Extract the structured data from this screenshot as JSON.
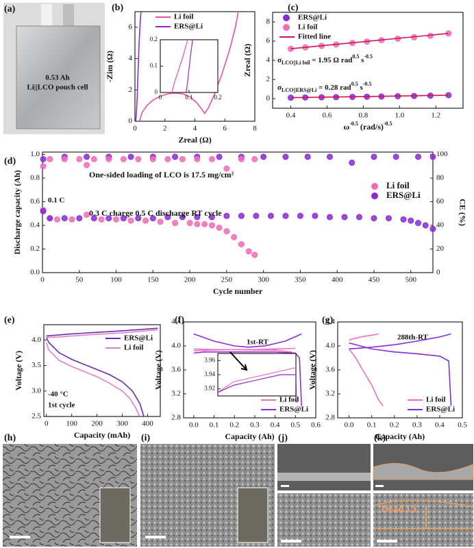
{
  "panel_labels": [
    "(a)",
    "(b)",
    "(c)",
    "(d)",
    "(e)",
    "(f)",
    "(g)",
    "(h)",
    "(i)",
    "(j)",
    "(k)"
  ],
  "photo_a": {
    "lines": [
      "0.53 Ah",
      "Li||LCO pouch cell"
    ]
  },
  "sem_k": "Dead Li",
  "chart_data": [
    {
      "type": "line",
      "x_label": "Zreal (Ω)",
      "y_label": "-Zim (Ω)",
      "xlim": [
        0,
        8
      ],
      "ylim": [
        0,
        7
      ],
      "xticks": [
        0,
        2,
        4,
        6,
        8
      ],
      "yticks": [
        0,
        2,
        4,
        6
      ],
      "legend": "top",
      "series": [
        {
          "name": "Li foil",
          "color": "#ee4f9c",
          "x": [
            0.3,
            0.5,
            0.8,
            1.2,
            1.7,
            2.2,
            2.7,
            3.2,
            3.7,
            4.1,
            4.4,
            4.65,
            4.9,
            5.3,
            5.8,
            6.3,
            6.7,
            6.9
          ],
          "values": [
            0,
            0.6,
            1.0,
            1.35,
            1.6,
            1.75,
            1.8,
            1.75,
            1.55,
            1.2,
            0.85,
            0.5,
            0.85,
            1.7,
            3.0,
            4.5,
            6.0,
            7.0
          ]
        },
        {
          "name": "ERS@Li",
          "color": "#8a2bd6",
          "x": [
            0.05,
            0.08,
            0.1,
            0.15,
            0.2,
            0.28,
            0.35,
            0.4
          ],
          "values": [
            0,
            0.3,
            0.6,
            1.5,
            3.0,
            5.0,
            6.3,
            7.0
          ]
        }
      ]
    },
    {
      "type": "line",
      "xlim": [
        0,
        0.2
      ],
      "ylim": [
        0,
        0.2
      ],
      "xticks": [
        0,
        0.1,
        0.2
      ],
      "yticks": [
        0,
        0.1,
        0.2
      ],
      "series": [
        {
          "color": "#ee4f9c",
          "x": [
            0.04,
            0.05,
            0.065,
            0.08,
            0.09,
            0.095
          ],
          "values": [
            0,
            0.04,
            0.09,
            0.14,
            0.18,
            0.2
          ]
        },
        {
          "color": "#8a2bd6",
          "x": [
            0.09,
            0.095,
            0.1,
            0.105,
            0.11,
            0.112
          ],
          "values": [
            0,
            0.04,
            0.09,
            0.14,
            0.18,
            0.2
          ]
        }
      ]
    },
    {
      "type": "scatter",
      "x_label": [
        {
          "text": "ω"
        },
        {
          "text": "-0.5",
          "shift": "super"
        },
        {
          "text": " (rad/s)"
        },
        {
          "text": "-0.5",
          "shift": "super"
        }
      ],
      "y_label": "Zreal (Ω)",
      "xlim": [
        0.3,
        1.35
      ],
      "ylim": [
        -1,
        9
      ],
      "xticks": [
        0.4,
        0.6,
        0.8,
        {
          "value": 1,
          "label": "1.0"
        },
        1.2
      ],
      "yticks": [
        0,
        2,
        4,
        6,
        8
      ],
      "legend": "upper-left",
      "series": [
        {
          "name": "ERS@Li",
          "color": "#8a2bd6",
          "x": [
            0.4,
            0.48,
            0.57,
            0.65,
            0.74,
            0.82,
            0.9,
            0.99,
            1.08,
            1.17,
            1.27
          ],
          "values": [
            0.1,
            0.12,
            0.14,
            0.16,
            0.18,
            0.2,
            0.22,
            0.25,
            0.28,
            0.31,
            0.36
          ]
        },
        {
          "name": "Li foil",
          "color": "#f26bb8",
          "x": [
            0.4,
            0.48,
            0.57,
            0.65,
            0.74,
            0.82,
            0.9,
            0.99,
            1.08,
            1.17,
            1.27
          ],
          "values": [
            5.2,
            5.35,
            5.5,
            5.65,
            5.8,
            5.95,
            6.1,
            6.25,
            6.4,
            6.55,
            6.8
          ]
        },
        {
          "name": "Fitted line",
          "type": "line",
          "color": "#d3124f",
          "x": [
            0.4,
            1.27
          ],
          "values": [
            5.2,
            6.8
          ]
        },
        {
          "type": "line",
          "color": "#d3124f",
          "x": [
            0.4,
            1.27
          ],
          "values": [
            0.1,
            0.36
          ]
        }
      ],
      "annotations": [
        [
          {
            "text": "σ"
          },
          {
            "text": "LCO||Li foil",
            "shift": "sub"
          },
          {
            "text": " = 1.95 Ω rad"
          },
          {
            "text": "0.5",
            "shift": "super"
          },
          {
            "text": " s"
          },
          {
            "text": "-0.5",
            "shift": "super"
          }
        ],
        [
          {
            "text": "σ"
          },
          {
            "text": "LCO||ERS@Li",
            "shift": "sub"
          },
          {
            "text": " = 0.28 rad"
          },
          {
            "text": "0.5",
            "shift": "super"
          },
          {
            "text": " s"
          },
          {
            "text": "-0.5",
            "shift": "super"
          }
        ]
      ]
    },
    {
      "type": "scatter",
      "x_label": "Cycle number",
      "y_label": "Discharge capacity (Ah)",
      "y2_label": "CE (%)",
      "xlim": [
        0,
        530
      ],
      "ylim": [
        0,
        1.02
      ],
      "y2lim": [
        0,
        102
      ],
      "xticks": [
        0,
        50,
        100,
        150,
        200,
        250,
        300,
        350,
        400,
        450,
        500
      ],
      "yticks": [
        {
          "value": 0,
          "label": "0.0"
        },
        0.2,
        0.4,
        0.6,
        0.8,
        {
          "value": 1,
          "label": "1.0"
        }
      ],
      "y2ticks": [
        0,
        20,
        40,
        60,
        80,
        100
      ],
      "legend": "right",
      "series": [
        {
          "color": "#8a2bd6",
          "axis": "y2",
          "x": [
            1,
            30,
            60,
            90,
            120,
            150,
            180,
            210,
            240,
            270,
            300,
            330,
            360,
            390,
            420,
            450,
            480,
            510,
            530
          ],
          "values": [
            96,
            98,
            98,
            98,
            98,
            98,
            98,
            98,
            98,
            98,
            98,
            98,
            98,
            98,
            93,
            98,
            98,
            98,
            98
          ]
        },
        {
          "color": "#f26bb8",
          "axis": "y2",
          "x": [
            1,
            10,
            30,
            50,
            60,
            70,
            90,
            110,
            130,
            150,
            170,
            190,
            210,
            230,
            250,
            270,
            288
          ],
          "values": [
            90,
            96,
            96,
            96,
            91,
            96,
            96,
            96,
            96,
            96,
            96,
            96,
            96,
            96,
            88,
            96,
            96
          ]
        },
        {
          "name": "Li foil",
          "color": "#f26bb8",
          "x": [
            1,
            10,
            20,
            40,
            60,
            80,
            100,
            120,
            140,
            160,
            180,
            200,
            210,
            220,
            230,
            240,
            250,
            260,
            270,
            280,
            288
          ],
          "values": [
            0.53,
            0.46,
            0.45,
            0.45,
            0.49,
            0.45,
            0.45,
            0.44,
            0.44,
            0.43,
            0.42,
            0.42,
            0.41,
            0.41,
            0.4,
            0.38,
            0.35,
            0.3,
            0.24,
            0.18,
            0.15
          ]
        },
        {
          "name": "ERS@Li",
          "color": "#8a2bd6",
          "x": [
            1,
            10,
            30,
            50,
            70,
            90,
            110,
            130,
            150,
            170,
            190,
            210,
            230,
            250,
            270,
            290,
            310,
            330,
            350,
            370,
            390,
            410,
            430,
            450,
            470,
            490,
            500,
            510,
            520,
            530
          ],
          "values": [
            0.52,
            0.46,
            0.46,
            0.46,
            0.46,
            0.46,
            0.46,
            0.46,
            0.46,
            0.47,
            0.47,
            0.47,
            0.47,
            0.48,
            0.48,
            0.48,
            0.48,
            0.48,
            0.48,
            0.48,
            0.47,
            0.47,
            0.47,
            0.46,
            0.46,
            0.45,
            0.44,
            0.42,
            0.4,
            0.37
          ]
        }
      ],
      "annotations": [
        "One-sided loading of LCO is 17.5 mg/cm²",
        "0.1 C",
        "0.3 C charge 0.5 C discharge RT cycle"
      ]
    },
    {
      "type": "line",
      "x_label": "Capacity (mAh)",
      "y_label": "Voltage (V)",
      "xlim": [
        -10,
        450
      ],
      "ylim": [
        2.5,
        4.3
      ],
      "xticks": [
        0,
        100,
        200,
        300,
        400
      ],
      "yticks": [
        2.5,
        {
          "value": 3,
          "label": "3.0"
        },
        3.5,
        {
          "value": 4,
          "label": "4.0"
        }
      ],
      "legend": "upper-right",
      "series": [
        {
          "name": "ERS@Li",
          "color": "#6a2bb0",
          "x": [
            0,
            50,
            100,
            200,
            300,
            440,
            null,
            0,
            10,
            50,
            100,
            150,
            200,
            250,
            300,
            340,
            370,
            385
          ],
          "values": [
            4.08,
            4.1,
            4.12,
            4.15,
            4.18,
            4.23,
            null,
            4.05,
            3.95,
            3.75,
            3.62,
            3.52,
            3.42,
            3.32,
            3.18,
            3.0,
            2.75,
            2.5
          ]
        },
        {
          "name": "Li foil",
          "color": "#e87dd0",
          "x": [
            0,
            50,
            100,
            200,
            300,
            440,
            null,
            0,
            10,
            50,
            100,
            150,
            200,
            250,
            300,
            330,
            355,
            368
          ],
          "values": [
            4.05,
            4.06,
            4.08,
            4.11,
            4.14,
            4.2,
            null,
            3.95,
            3.8,
            3.6,
            3.48,
            3.38,
            3.28,
            3.15,
            3.0,
            2.85,
            2.65,
            2.5
          ]
        }
      ],
      "annotations": [
        "-40 °C",
        "1st cycle"
      ]
    },
    {
      "type": "line",
      "x_label": "Capacity (Ah)",
      "y_label": "Voltage (V)",
      "xlim": [
        -0.05,
        0.6
      ],
      "ylim": [
        2.8,
        4.4
      ],
      "xticks": [
        {
          "value": 0,
          "label": "0.0"
        },
        0.1,
        0.2,
        0.3,
        0.4,
        0.5,
        0.6
      ],
      "yticks": [
        2.8,
        3.2,
        3.6,
        {
          "value": 4,
          "label": "4.0"
        },
        4.4
      ],
      "legend": "lower-right",
      "series": [
        {
          "name": "Li foil",
          "color": "#ee6fbf",
          "x": [
            0,
            0.1,
            0.2,
            0.3,
            0.4,
            0.5,
            null,
            0,
            0.1,
            0.2,
            0.3,
            0.4,
            0.48,
            0.5,
            0.505
          ],
          "values": [
            3.92,
            3.93,
            3.94,
            3.94,
            3.95,
            3.96,
            null,
            3.95,
            3.94,
            3.94,
            3.93,
            3.93,
            3.9,
            3.6,
            3.05
          ]
        },
        {
          "name": "ERS@Li",
          "color": "#8a2bd6",
          "x": [
            0,
            0.1,
            0.2,
            0.27,
            0.35,
            0.45,
            0.53,
            null,
            0,
            0.05,
            0.2,
            0.4,
            0.5,
            0.52,
            0.53
          ],
          "values": [
            4.2,
            4.08,
            4.0,
            3.98,
            4.0,
            4.08,
            4.2,
            null,
            3.88,
            3.9,
            3.9,
            3.9,
            3.88,
            3.8,
            3.0
          ]
        }
      ],
      "annotations": [
        "1st-RT"
      ]
    },
    {
      "type": "line",
      "xlim": [
        0,
        0.5
      ],
      "ylim": [
        3.91,
        3.97
      ],
      "yticks": [
        3.92,
        3.94,
        3.96
      ],
      "series": [
        {
          "color": "#ee6fbf",
          "x": [
            0,
            0.1,
            0.2,
            0.3,
            0.4,
            0.5
          ],
          "values": [
            3.915,
            3.93,
            3.935,
            3.94,
            3.945,
            3.95
          ]
        },
        {
          "color": "#8a2bd6",
          "x": [
            0,
            0.1,
            0.2,
            0.3,
            0.4,
            0.5
          ],
          "values": [
            3.915,
            3.925,
            3.93,
            3.935,
            3.94,
            3.94
          ]
        }
      ]
    },
    {
      "type": "line",
      "x_label": "Capacity (Ah)",
      "y_label": "Voltage (V)",
      "xlim": [
        -0.05,
        0.5
      ],
      "ylim": [
        2.8,
        4.4
      ],
      "xticks": [
        {
          "value": 0,
          "label": "0.0"
        },
        0.1,
        0.2,
        0.3,
        0.4,
        0.5
      ],
      "yticks": [
        2.8,
        3.2,
        3.6,
        {
          "value": 4,
          "label": "4.0"
        },
        4.4
      ],
      "legend": "lower-right",
      "series": [
        {
          "name": "Li foil",
          "color": "#ee6fbf",
          "x": [
            0,
            0.05,
            0.1,
            0.13,
            null,
            0,
            0.03,
            0.06,
            0.1,
            0.13,
            0.15
          ],
          "values": [
            4.1,
            4.15,
            4.18,
            4.2,
            null,
            3.95,
            3.8,
            3.6,
            3.35,
            3.1,
            3.0
          ]
        },
        {
          "name": "ERS@Li",
          "color": "#8a2bd6",
          "x": [
            0,
            0.1,
            0.2,
            0.3,
            0.4,
            0.45,
            null,
            0,
            0.1,
            0.2,
            0.3,
            0.4,
            0.44,
            0.45
          ],
          "values": [
            3.95,
            3.98,
            4.02,
            4.08,
            4.15,
            4.2,
            null,
            4.05,
            3.95,
            3.9,
            3.87,
            3.83,
            3.75,
            3.0
          ]
        }
      ],
      "annotations": [
        "288th-RT"
      ]
    }
  ]
}
